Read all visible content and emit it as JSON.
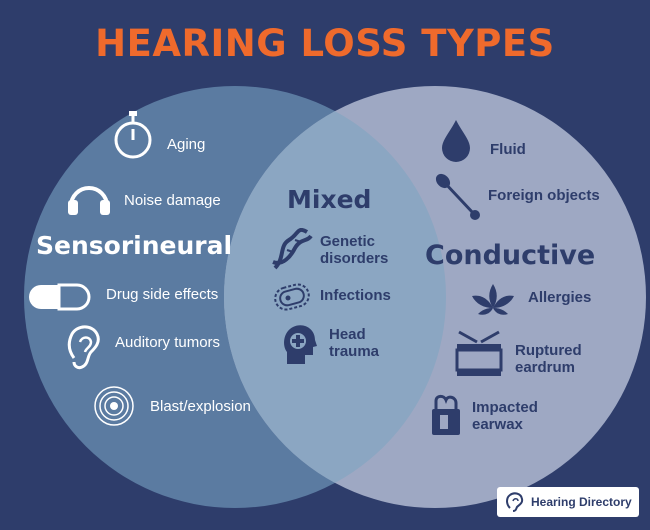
{
  "title": "HEARING LOSS TYPES",
  "sets": {
    "sensorineural": {
      "label": "Sensorineural",
      "items": [
        "Aging",
        "Noise damage",
        "Drug side effects",
        "Auditory tumors",
        "Blast/explosion"
      ]
    },
    "mixed": {
      "label": "Mixed",
      "items": [
        "Genetic disorders",
        "Infections",
        "Head trauma"
      ]
    },
    "conductive": {
      "label": "Conductive",
      "items": [
        "Fluid",
        "Foreign objects",
        "Allergies",
        "Ruptured eardrum",
        "Impacted earwax"
      ]
    }
  },
  "logo": {
    "text": "Hearing Directory"
  },
  "colors": {
    "background": "#2e3d6b",
    "title": "#ef6a2c",
    "sensorineural_circle": "#5b7ba1",
    "conductive_circle": "#9ea8c3",
    "overlap": "#8ba6c2"
  }
}
